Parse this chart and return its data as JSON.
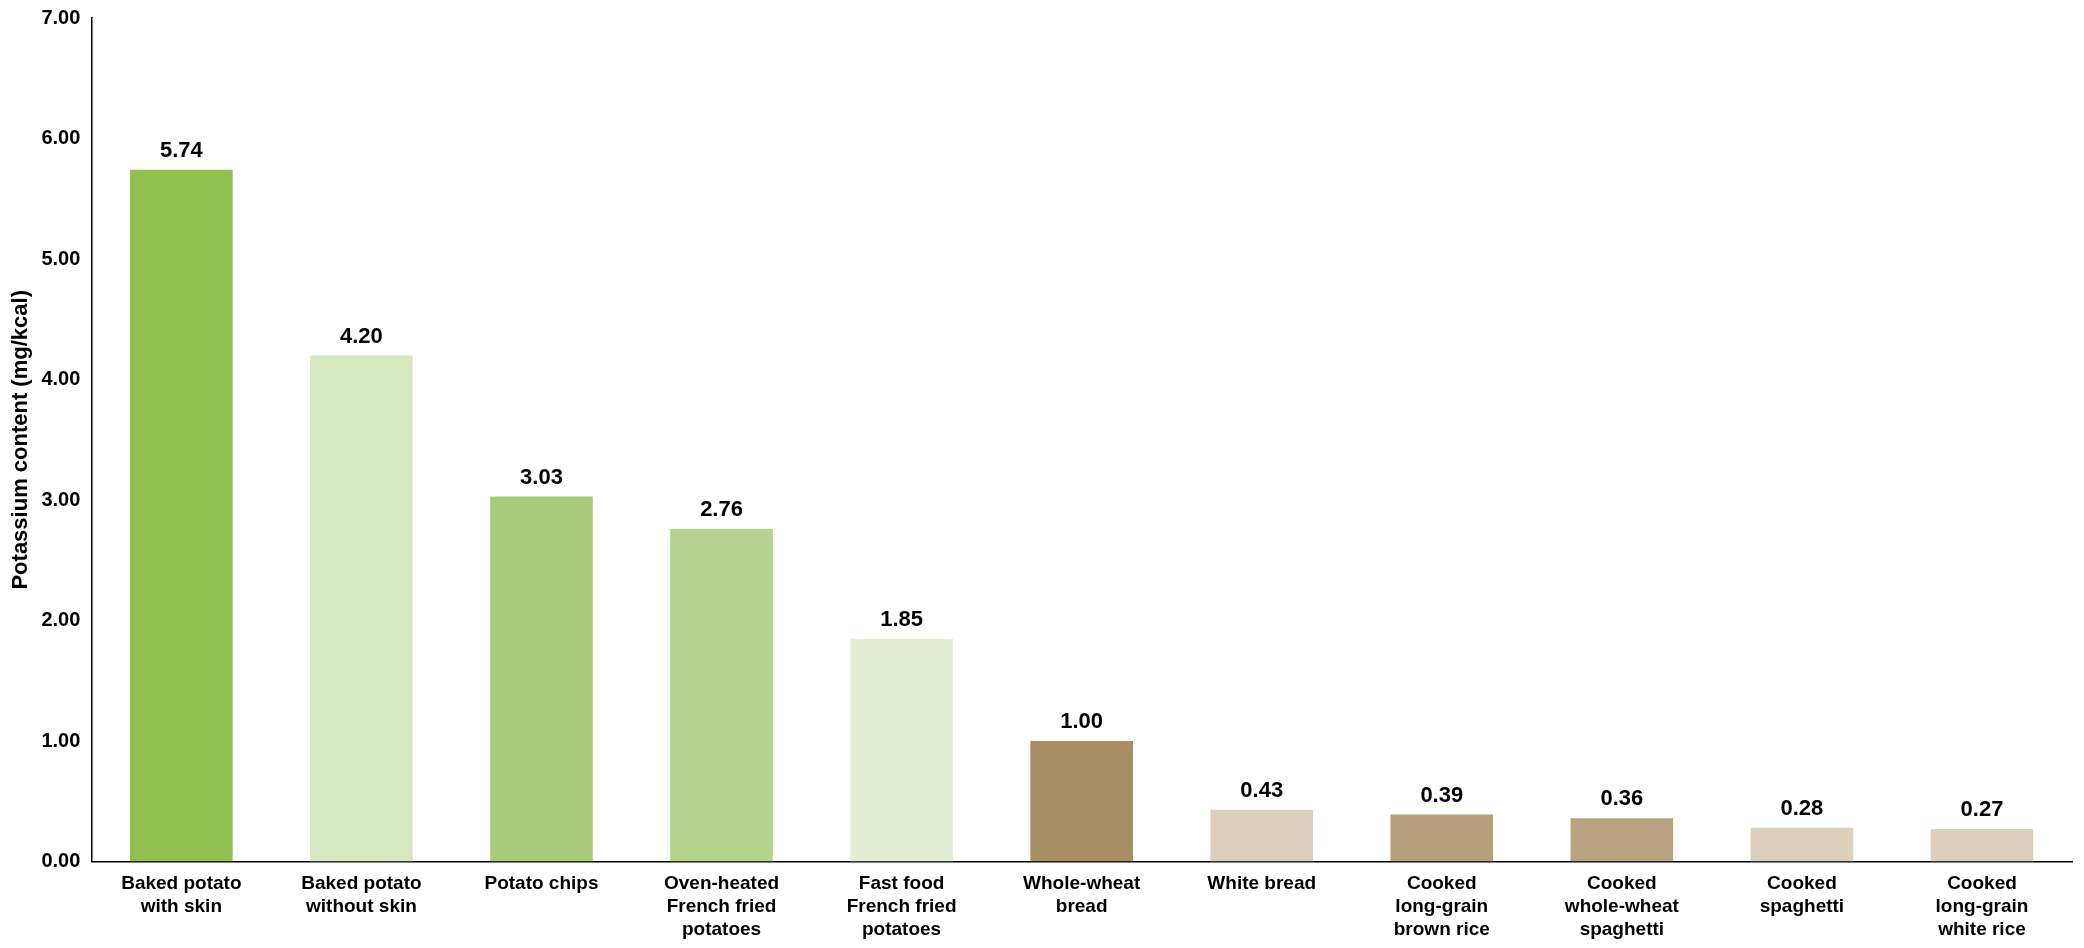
{
  "chart_data": {
    "type": "bar",
    "ylabel": "Potassium content (mg/kcal)",
    "categories": [
      "Baked potato with skin",
      "Baked potato without skin",
      "Potato chips",
      "Oven-heated French fried potatoes",
      "Fast food French fried potatoes",
      "Whole-wheat bread",
      "White bread",
      "Cooked long-grain brown rice",
      "Cooked whole-wheat spaghetti",
      "Cooked spaghetti",
      "Cooked long-grain white rice"
    ],
    "values": [
      5.74,
      4.2,
      3.03,
      2.76,
      1.85,
      1.0,
      0.43,
      0.39,
      0.36,
      0.28,
      0.27
    ],
    "colors": [
      "#92c050",
      "#d6e8bf",
      "#a9cc7c",
      "#b5d38e",
      "#e3efd3",
      "#a88d65",
      "#dccfbb",
      "#b59e7b",
      "#b8a282",
      "#dccfbb",
      "#dccfbb"
    ],
    "ylim": [
      0,
      7
    ],
    "yticks": [
      {
        "value": 0,
        "label": "0.00"
      },
      {
        "value": 1,
        "label": "1.00"
      },
      {
        "value": 2,
        "label": "2.00"
      },
      {
        "value": 3,
        "label": "3.00"
      },
      {
        "value": 4,
        "label": "4.00"
      },
      {
        "value": 5,
        "label": "5.00"
      },
      {
        "value": 6,
        "label": "6.00"
      },
      {
        "value": 7,
        "label": "7.00"
      }
    ],
    "value_labels": [
      "5.74",
      "4.20",
      "3.03",
      "2.76",
      "1.85",
      "1.00",
      "0.43",
      "0.39",
      "0.36",
      "0.28",
      "0.27"
    ],
    "grid": false,
    "legend": false
  }
}
